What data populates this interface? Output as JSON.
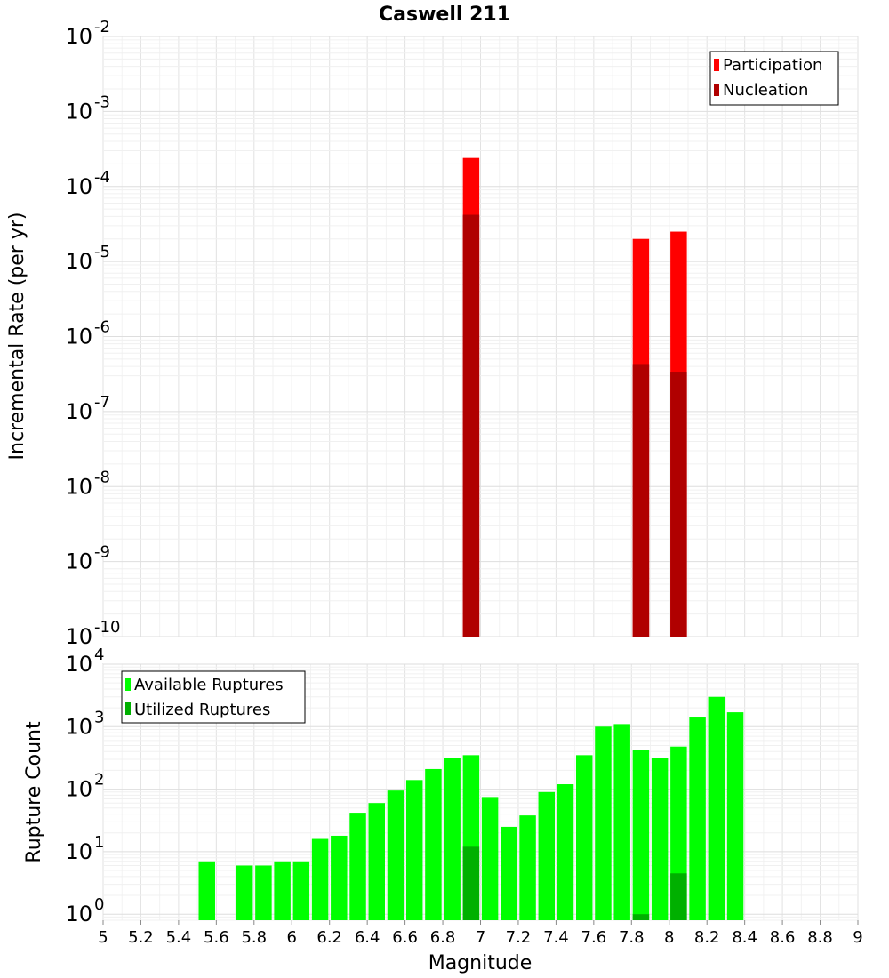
{
  "title": "Caswell 211",
  "xlabel": "Magnitude",
  "chart_data": [
    {
      "type": "bar",
      "title": "Caswell 211",
      "ylabel": "Incremental Rate (per yr)",
      "yscale": "log",
      "ylim": [
        1e-10,
        0.01
      ],
      "xlim": [
        5,
        9
      ],
      "grid": true,
      "legend_position": "top-right",
      "series": [
        {
          "name": "Participation",
          "color": "#ff0000",
          "x": [
            6.95,
            7.85,
            8.05
          ],
          "values": [
            0.00024,
            2e-05,
            2.5e-05
          ]
        },
        {
          "name": "Nucleation",
          "color": "#b00000",
          "x": [
            6.95,
            7.85,
            8.05
          ],
          "values": [
            4.2e-05,
            4.3e-07,
            3.4e-07
          ]
        }
      ],
      "ytick_exponents": [
        -10,
        -9,
        -8,
        -7,
        -6,
        -5,
        -4,
        -3,
        -2
      ]
    },
    {
      "type": "bar",
      "xlabel": "Magnitude",
      "ylabel": "Rupture Count",
      "yscale": "log",
      "ylim": [
        0.8,
        10000
      ],
      "xlim": [
        5,
        9
      ],
      "grid": true,
      "legend_position": "top-left",
      "series": [
        {
          "name": "Available Ruptures",
          "color": "#00ff00",
          "x": [
            5.55,
            5.75,
            5.85,
            5.95,
            6.05,
            6.15,
            6.25,
            6.35,
            6.45,
            6.55,
            6.65,
            6.75,
            6.85,
            6.95,
            7.05,
            7.15,
            7.25,
            7.35,
            7.45,
            7.55,
            7.65,
            7.75,
            7.85,
            7.95,
            8.05,
            8.15,
            8.25,
            8.35
          ],
          "values": [
            7,
            6,
            6,
            7,
            7,
            16,
            18,
            42,
            60,
            95,
            140,
            210,
            320,
            350,
            75,
            25,
            38,
            90,
            120,
            350,
            1000,
            1100,
            430,
            320,
            480,
            1400,
            3000,
            1700
          ]
        },
        {
          "name": "Utilized Ruptures",
          "color": "#00b000",
          "x": [
            6.95,
            7.85,
            8.05
          ],
          "values": [
            12,
            1,
            4.5
          ]
        }
      ],
      "ytick_exponents": [
        0,
        1,
        2,
        3,
        4
      ]
    }
  ],
  "xticks": [
    "5",
    "5.2",
    "5.4",
    "5.6",
    "5.8",
    "6",
    "6.2",
    "6.4",
    "6.6",
    "6.8",
    "7",
    "7.2",
    "7.4",
    "7.6",
    "7.8",
    "8",
    "8.2",
    "8.4",
    "8.6",
    "8.8",
    "9"
  ]
}
